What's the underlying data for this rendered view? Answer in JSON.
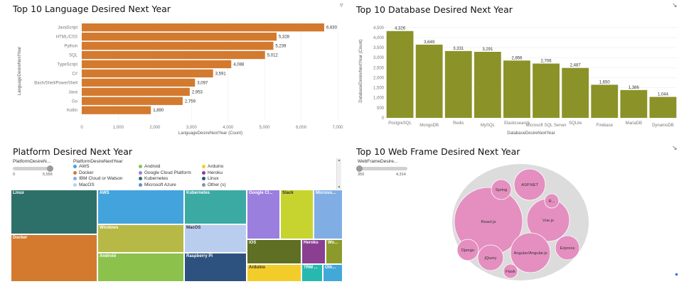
{
  "panels": {
    "language": {
      "title": "Top 10 Language Desired Next Year",
      "icon": "filter-icon"
    },
    "database": {
      "title": "Top 10 Database Desired Next Year",
      "icon": "expand-icon"
    },
    "platform": {
      "title": "Platform Desired Next Year"
    },
    "webframe": {
      "title": "Top 10 Web Frame Desired Next Year",
      "icon": "expand-icon"
    }
  },
  "colors": {
    "language_bar": "#d37a2f",
    "database_bar": "#8b9228",
    "bubble": "#e48fc0",
    "bubble_bg": "#dcdcdc"
  },
  "chart_data": [
    {
      "id": "language",
      "type": "bar",
      "orientation": "horizontal",
      "title": "Top 10 Language Desired Next Year",
      "categories": [
        "JavaScript",
        "HTML/CSS",
        "Python",
        "SQL",
        "TypeScript",
        "C#",
        "Bash/Shell/PowerShell",
        "Java",
        "Go",
        "Kotlin"
      ],
      "values": [
        6630,
        5328,
        5239,
        5012,
        4088,
        3591,
        3097,
        2953,
        2759,
        1890
      ],
      "data_labels": [
        "6,630",
        "5,328",
        "5,239",
        "5,012",
        "4,088",
        "3,591",
        "3,097",
        "2,953",
        "2,759",
        "1,890"
      ],
      "xlabel": "LanguageDesireNextYear (Count)",
      "ylabel": "LanguageDesireNextYear",
      "xlim": [
        0,
        7000
      ],
      "xticks": [
        "0",
        "1,000",
        "2,000",
        "3,000",
        "4,000",
        "5,000",
        "6,000",
        "7,000"
      ]
    },
    {
      "id": "database",
      "type": "bar",
      "orientation": "vertical",
      "title": "Top 10 Database Desired Next Year",
      "categories": [
        "PostgreSQL",
        "MongoDB",
        "Redis",
        "MySQL",
        "Elasticsearch",
        "Microsoft SQL Server",
        "SQLite",
        "Firebase",
        "MariaDB",
        "DynamoDB"
      ],
      "values": [
        4326,
        3649,
        3331,
        3291,
        2856,
        2706,
        2487,
        1650,
        1386,
        1044
      ],
      "data_labels": [
        "4,326",
        "3,649",
        "3,331",
        "3,291",
        "2,856",
        "2,706",
        "2,487",
        "1,650",
        "1,386",
        "1,044"
      ],
      "xlabel": "DatabaseDesireNextYear",
      "ylabel": "DatabaseDesireNextYear (Count)",
      "ylim": [
        0,
        4600
      ],
      "yticks": [
        {
          "v": 0,
          "t": "0"
        },
        {
          "v": 500,
          "t": "500"
        },
        {
          "v": 1000,
          "t": "1,000"
        },
        {
          "v": 1500,
          "t": "1,500"
        },
        {
          "v": 2000,
          "t": "2,000"
        },
        {
          "v": 2500,
          "t": "2,500"
        },
        {
          "v": 3000,
          "t": "3,000"
        },
        {
          "v": 3500,
          "t": "3,500"
        },
        {
          "v": 4000,
          "t": "4,000"
        },
        {
          "v": 4500,
          "t": "4,500"
        }
      ]
    },
    {
      "id": "platform",
      "type": "treemap",
      "title": "Platform Desired Next Year",
      "legend_title": "PlatformDesireNextYear",
      "size_legend_title": "PlatformDesireN...",
      "size_range": [
        "0",
        "5,556"
      ],
      "cells": [
        {
          "label": "Linux",
          "color": "#2d7069"
        },
        {
          "label": "Docker",
          "color": "#d37a2f"
        },
        {
          "label": "AWS",
          "color": "#43a3dc"
        },
        {
          "label": "Windows",
          "color": "#b6b945"
        },
        {
          "label": "Android",
          "color": "#8cc24c"
        },
        {
          "label": "Kubernetes",
          "color": "#3aaaa3"
        },
        {
          "label": "MacOS",
          "color": "#b9cdef"
        },
        {
          "label": "Raspberry Pi",
          "color": "#2d527f"
        },
        {
          "label": "Google Cl...",
          "color": "#9b7fdf"
        },
        {
          "label": "Slack",
          "color": "#c7d42f"
        },
        {
          "label": "Microso...",
          "color": "#80aee4"
        },
        {
          "label": "iOS",
          "color": "#5f6f24"
        },
        {
          "label": "Heroku",
          "color": "#8a3f91"
        },
        {
          "label": "Wo...",
          "color": "#8c9a2c"
        },
        {
          "label": "Arduino",
          "color": "#f2cd2a"
        },
        {
          "label": "TRM ...",
          "color": "#27b8b0"
        },
        {
          "label": "Oth...",
          "color": "#43a8d8"
        }
      ],
      "legend": [
        {
          "label": "AWS",
          "color": "#43a3dc"
        },
        {
          "label": "Android",
          "color": "#8cc24c"
        },
        {
          "label": "Arduino",
          "color": "#f2cd2a"
        },
        {
          "label": "Docker",
          "color": "#d37a2f"
        },
        {
          "label": "Google Cloud Platform",
          "color": "#9b7fdf"
        },
        {
          "label": "Heroku",
          "color": "#8a3f91"
        },
        {
          "label": "IBM Cloud or Watson",
          "color": "#80aee4"
        },
        {
          "label": "Kubernetes",
          "color": "#2d7069"
        },
        {
          "label": "Linux",
          "color": "#2d527f"
        },
        {
          "label": "MacOS",
          "color": "#b9cdef"
        },
        {
          "label": "Microsoft Azure",
          "color": "#5b8fd0"
        },
        {
          "label": "Other (s)",
          "color": "#8a8fa8"
        }
      ]
    },
    {
      "id": "webframe",
      "type": "bubble",
      "title": "Top 10 Web Frame Desired Next Year",
      "size_legend_title": "WebFrameDesire...",
      "size_range": [
        "350",
        "4,314"
      ],
      "bubbles": [
        {
          "label": "React.js"
        },
        {
          "label": "Vue.js"
        },
        {
          "label": "Angular/Angular.js"
        },
        {
          "label": "ASP.NET"
        },
        {
          "label": "Express"
        },
        {
          "label": "Spring"
        },
        {
          "label": "Django"
        },
        {
          "label": "jQuery"
        },
        {
          "label": "Flask"
        },
        {
          "label": "R..."
        }
      ]
    }
  ]
}
